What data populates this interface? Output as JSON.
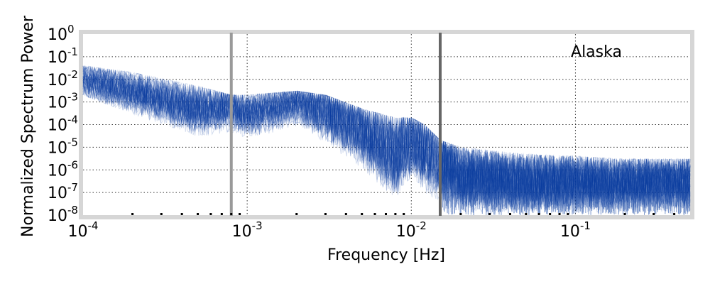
{
  "chart_data": {
    "type": "line",
    "title": "",
    "annotation": "Alaska",
    "xlabel": "Frequency [Hz]",
    "ylabel": "Normalized Spectrum Power",
    "xscale": "log",
    "yscale": "log",
    "xlim": [
      0.0001,
      0.5
    ],
    "ylim": [
      1e-08,
      1
    ],
    "grid": true,
    "series_color": "#0a3c9e",
    "vlines": [
      {
        "x": 0.0008,
        "color": "#999999"
      },
      {
        "x": 0.015,
        "color": "#666666"
      }
    ],
    "x_ticks": [
      {
        "base": "10",
        "exp": "-4"
      },
      {
        "base": "10",
        "exp": "-3"
      },
      {
        "base": "10",
        "exp": "-2"
      },
      {
        "base": "10",
        "exp": "-1"
      }
    ],
    "y_ticks": [
      {
        "base": "10",
        "exp": "0"
      },
      {
        "base": "10",
        "exp": "-1"
      },
      {
        "base": "10",
        "exp": "-2"
      },
      {
        "base": "10",
        "exp": "-3"
      },
      {
        "base": "10",
        "exp": "-4"
      },
      {
        "base": "10",
        "exp": "-5"
      },
      {
        "base": "10",
        "exp": "-6"
      },
      {
        "base": "10",
        "exp": "-7"
      },
      {
        "base": "10",
        "exp": "-8"
      }
    ],
    "envelope": {
      "x": [
        0.0001,
        0.0002,
        0.0005,
        0.0008,
        0.001,
        0.002,
        0.003,
        0.005,
        0.008,
        0.01,
        0.012,
        0.015,
        0.02,
        0.05,
        0.1,
        0.2,
        0.5
      ],
      "y_mid": [
        0.01,
        0.003,
        0.0005,
        0.0006,
        0.0003,
        0.001,
        0.0004,
        5e-05,
        5e-06,
        2e-05,
        8e-06,
        2e-06,
        5e-07,
        3e-07,
        3e-07,
        3e-07,
        3e-07
      ],
      "y_low": [
        0.002,
        0.0003,
        3e-05,
        3e-05,
        3e-05,
        5e-05,
        5e-06,
        3e-07,
        1e-08,
        5e-08,
        1e-08,
        1e-08,
        1e-08,
        1e-08,
        1e-08,
        1e-08,
        1e-08
      ],
      "y_high": [
        0.04,
        0.02,
        0.005,
        0.002,
        0.002,
        0.003,
        0.002,
        0.0005,
        0.0002,
        0.0002,
        0.0001,
        2e-05,
        1e-05,
        5e-06,
        4e-06,
        3e-06,
        3e-06
      ]
    },
    "series_count": 60
  }
}
